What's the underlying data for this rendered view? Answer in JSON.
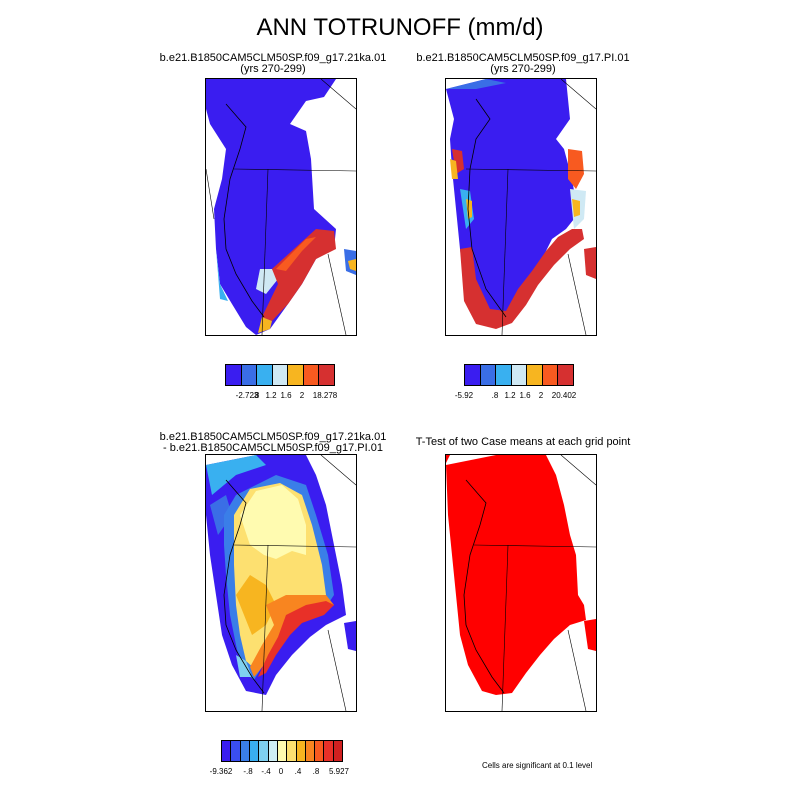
{
  "main_title": "ANN TOTRUNOFF (mm/d)",
  "panels": [
    {
      "title1": "b.e21.B1850CAM5CLM50SP.f09_g17.21ka.01",
      "title2": "(yrs 270-299)",
      "colorbar": {
        "colors": [
          "#3a1df0",
          "#3a6ee6",
          "#39b0f0",
          "#cfe9f4",
          "#f7b520",
          "#f85a20",
          "#d63030"
        ],
        "labels": [
          "-2.723",
          ".8",
          "1.2",
          "1.6",
          "2",
          "18.278"
        ]
      }
    },
    {
      "title1": "b.e21.B1850CAM5CLM50SP.f09_g17.PI.01",
      "title2": "(yrs 270-299)",
      "colorbar": {
        "colors": [
          "#3a1df0",
          "#3a6ee6",
          "#39b0f0",
          "#cfe9f4",
          "#f7b520",
          "#f85a20",
          "#d63030"
        ],
        "labels": [
          "-5.92",
          ".8",
          "1.2",
          "1.6",
          "2",
          "20.402"
        ]
      }
    },
    {
      "title1": "b.e21.B1850CAM5CLM50SP.f09_g17.21ka.01",
      "title2": "- b.e21.B1850CAM5CLM50SP.f09_g17.PI.01",
      "colorbar": {
        "colors": [
          "#3a1df0",
          "#3a4ef0",
          "#3a7ee8",
          "#39aef0",
          "#7fd0f0",
          "#cfeef4",
          "#fffbb0",
          "#fde070",
          "#f7b520",
          "#f88520",
          "#f85a20",
          "#e83028",
          "#d02020"
        ],
        "labels": [
          "-9.362",
          "-.8",
          "-.4",
          "0",
          ".4",
          ".8",
          "5.927"
        ]
      }
    },
    {
      "title1": "T-Test of two Case means at each grid point",
      "title2": "",
      "note": "Cells are significant at 0.1 level"
    }
  ]
}
